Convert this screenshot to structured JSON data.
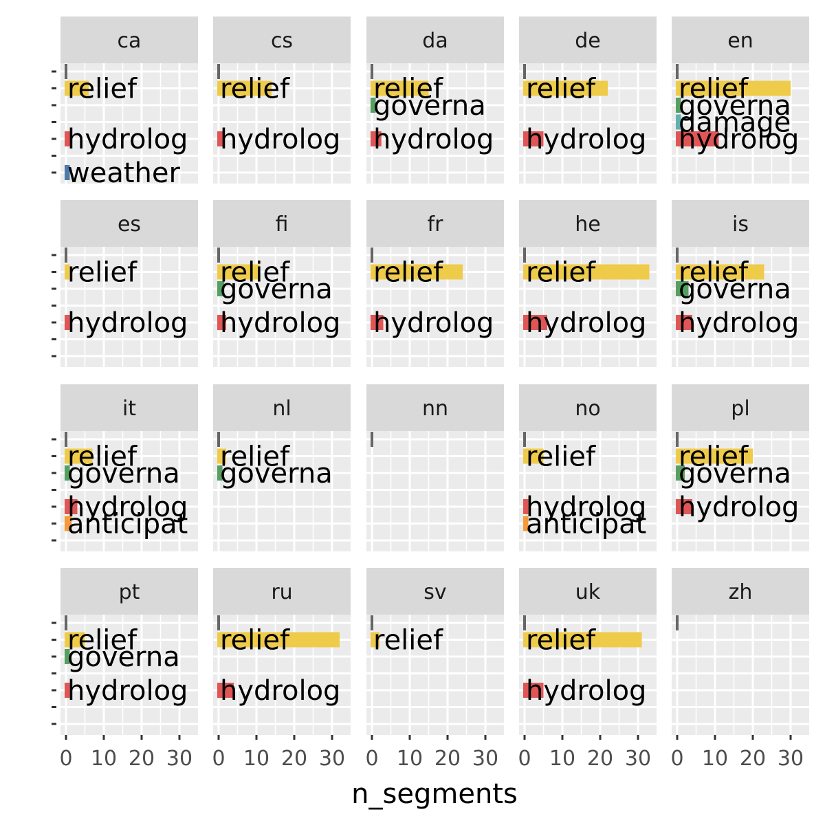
{
  "chart_data": {
    "type": "bar",
    "orientation": "horizontal",
    "faceted": true,
    "facet_columns": 5,
    "xlabel": "n_segments",
    "ylabel": "",
    "xlim": [
      0,
      34
    ],
    "x_ticks": [
      0,
      10,
      20,
      30
    ],
    "x_tick_labels": [
      "0",
      "10",
      "20",
      "30"
    ],
    "grid": true,
    "category_slots": 7,
    "category_colors": {
      "relief": "#EFCB4A",
      "governance": "#55A060",
      "damage": "#63B0B0",
      "hydrology": "#E05556",
      "anticipation": "#F49A3A",
      "weather": "#4C79A8"
    },
    "panel_bg": "#EBEBEB",
    "strip_bg": "#D9D9D9",
    "marker_color": "#666666",
    "panels": [
      {
        "label": "ca",
        "bars": [
          {
            "slot": 1,
            "category": "relief",
            "value": 6,
            "text": "relief"
          },
          {
            "slot": 4,
            "category": "hydrology",
            "value": 1.5,
            "text": "hydrolog"
          },
          {
            "slot": 6,
            "category": "weather",
            "value": 1,
            "text": "weather"
          }
        ]
      },
      {
        "label": "cs",
        "bars": [
          {
            "slot": 1,
            "category": "relief",
            "value": 14,
            "text": "relief"
          },
          {
            "slot": 4,
            "category": "hydrology",
            "value": 1.5,
            "text": "hydrolog"
          }
        ]
      },
      {
        "label": "da",
        "bars": [
          {
            "slot": 1,
            "category": "relief",
            "value": 15,
            "text": "relief"
          },
          {
            "slot": 2,
            "category": "governance",
            "value": 1,
            "text": "governa"
          },
          {
            "slot": 4,
            "category": "hydrology",
            "value": 2.5,
            "text": "hydrolog"
          }
        ]
      },
      {
        "label": "de",
        "bars": [
          {
            "slot": 1,
            "category": "relief",
            "value": 22,
            "text": "relief"
          },
          {
            "slot": 4,
            "category": "hydrology",
            "value": 5,
            "text": "hydrolog"
          }
        ]
      },
      {
        "label": "en",
        "bars": [
          {
            "slot": 1,
            "category": "relief",
            "value": 30,
            "text": "relief"
          },
          {
            "slot": 2,
            "category": "governance",
            "value": 1,
            "text": "governa"
          },
          {
            "slot": 3,
            "category": "damage",
            "value": 1,
            "text": "damage"
          },
          {
            "slot": 4,
            "category": "hydrology",
            "value": 11,
            "text": "hydrolog"
          }
        ]
      },
      {
        "label": "es",
        "bars": [
          {
            "slot": 1,
            "category": "relief",
            "value": 1,
            "text": "relief"
          },
          {
            "slot": 4,
            "category": "hydrology",
            "value": 1,
            "text": "hydrolog"
          }
        ]
      },
      {
        "label": "fi",
        "bars": [
          {
            "slot": 1,
            "category": "relief",
            "value": 11,
            "text": "relief"
          },
          {
            "slot": 2,
            "category": "governance",
            "value": 1.5,
            "text": "governa"
          },
          {
            "slot": 4,
            "category": "hydrology",
            "value": 2,
            "text": "hydrolog"
          }
        ]
      },
      {
        "label": "fr",
        "bars": [
          {
            "slot": 1,
            "category": "relief",
            "value": 24,
            "text": "relief"
          },
          {
            "slot": 4,
            "category": "hydrology",
            "value": 3,
            "text": "hydrolog"
          }
        ]
      },
      {
        "label": "he",
        "bars": [
          {
            "slot": 1,
            "category": "relief",
            "value": 33,
            "text": "relief"
          },
          {
            "slot": 4,
            "category": "hydrology",
            "value": 6,
            "text": "hydrolog"
          }
        ]
      },
      {
        "label": "is",
        "bars": [
          {
            "slot": 1,
            "category": "relief",
            "value": 23,
            "text": "relief"
          },
          {
            "slot": 2,
            "category": "governance",
            "value": 3,
            "text": "governa"
          },
          {
            "slot": 4,
            "category": "hydrology",
            "value": 4,
            "text": "hydrolog"
          }
        ]
      },
      {
        "label": "it",
        "bars": [
          {
            "slot": 1,
            "category": "relief",
            "value": 7,
            "text": "relief"
          },
          {
            "slot": 2,
            "category": "governance",
            "value": 1,
            "text": "governa"
          },
          {
            "slot": 4,
            "category": "hydrology",
            "value": 3,
            "text": "hydrolog"
          },
          {
            "slot": 5,
            "category": "anticipation",
            "value": 1.5,
            "text": "anticipat"
          }
        ]
      },
      {
        "label": "nl",
        "bars": [
          {
            "slot": 1,
            "category": "relief",
            "value": 2,
            "text": "relief"
          },
          {
            "slot": 2,
            "category": "governance",
            "value": 1,
            "text": "governa"
          }
        ]
      },
      {
        "label": "nn",
        "bars": []
      },
      {
        "label": "no",
        "bars": [
          {
            "slot": 1,
            "category": "relief",
            "value": 5,
            "text": "relief"
          },
          {
            "slot": 4,
            "category": "hydrology",
            "value": 1,
            "text": "hydrolog"
          },
          {
            "slot": 5,
            "category": "anticipation",
            "value": 1,
            "text": "anticipat"
          }
        ]
      },
      {
        "label": "pl",
        "bars": [
          {
            "slot": 1,
            "category": "relief",
            "value": 20,
            "text": "relief"
          },
          {
            "slot": 2,
            "category": "governance",
            "value": 2,
            "text": "governa"
          },
          {
            "slot": 4,
            "category": "hydrology",
            "value": 4,
            "text": "hydrolog"
          }
        ]
      },
      {
        "label": "pt",
        "bars": [
          {
            "slot": 1,
            "category": "relief",
            "value": 5,
            "text": "relief"
          },
          {
            "slot": 2,
            "category": "governance",
            "value": 1,
            "text": "governa"
          },
          {
            "slot": 4,
            "category": "hydrology",
            "value": 1,
            "text": "hydrolog"
          }
        ]
      },
      {
        "label": "ru",
        "bars": [
          {
            "slot": 1,
            "category": "relief",
            "value": 32,
            "text": "relief"
          },
          {
            "slot": 4,
            "category": "hydrology",
            "value": 4,
            "text": "hydrolog"
          }
        ]
      },
      {
        "label": "sv",
        "bars": [
          {
            "slot": 1,
            "category": "relief",
            "value": 2,
            "text": "relief"
          }
        ]
      },
      {
        "label": "uk",
        "bars": [
          {
            "slot": 1,
            "category": "relief",
            "value": 31,
            "text": "relief"
          },
          {
            "slot": 4,
            "category": "hydrology",
            "value": 5,
            "text": "hydrolog"
          }
        ]
      },
      {
        "label": "zh",
        "bars": []
      }
    ]
  }
}
